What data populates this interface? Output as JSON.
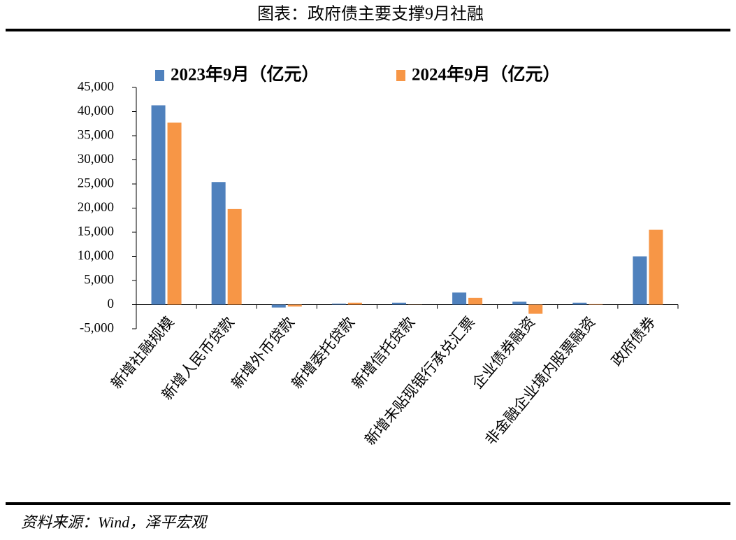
{
  "chart_data": {
    "type": "bar",
    "title": "图表：政府债主要支撑9月社融",
    "source": "资料来源：Wind，泽平宏观",
    "categories": [
      "新增社融规模",
      "新增人民币贷款",
      "新增外币贷款",
      "新增委托贷款",
      "新增信托贷款",
      "新增未贴现银行承兑汇票",
      "企业债券融资",
      "非金融企业境内股票融资",
      "政府债券"
    ],
    "series": [
      {
        "name": "2023年9月（亿元）",
        "color": "#4f81bd",
        "values": [
          41300,
          25400,
          -600,
          200,
          400,
          2500,
          600,
          400,
          10000
        ]
      },
      {
        "name": "2024年9月（亿元）",
        "color": "#f79646",
        "values": [
          37700,
          19800,
          -400,
          400,
          30,
          1400,
          -1900,
          100,
          15500
        ]
      }
    ],
    "ylim": [
      -5000,
      45000
    ],
    "yticks": [
      {
        "value": -5000,
        "label": "-5,000"
      },
      0,
      {
        "value": 5000,
        "label": "5,000"
      },
      {
        "value": 10000,
        "label": "10,000"
      },
      {
        "value": 15000,
        "label": "15,000"
      },
      {
        "value": 20000,
        "label": "20,000"
      },
      {
        "value": 25000,
        "label": "25,000"
      },
      {
        "value": 30000,
        "label": "30,000"
      },
      {
        "value": 35000,
        "label": "35,000"
      },
      {
        "value": 40000,
        "label": "40,000"
      },
      {
        "value": 45000,
        "label": "45,000"
      }
    ],
    "legend": "top"
  }
}
